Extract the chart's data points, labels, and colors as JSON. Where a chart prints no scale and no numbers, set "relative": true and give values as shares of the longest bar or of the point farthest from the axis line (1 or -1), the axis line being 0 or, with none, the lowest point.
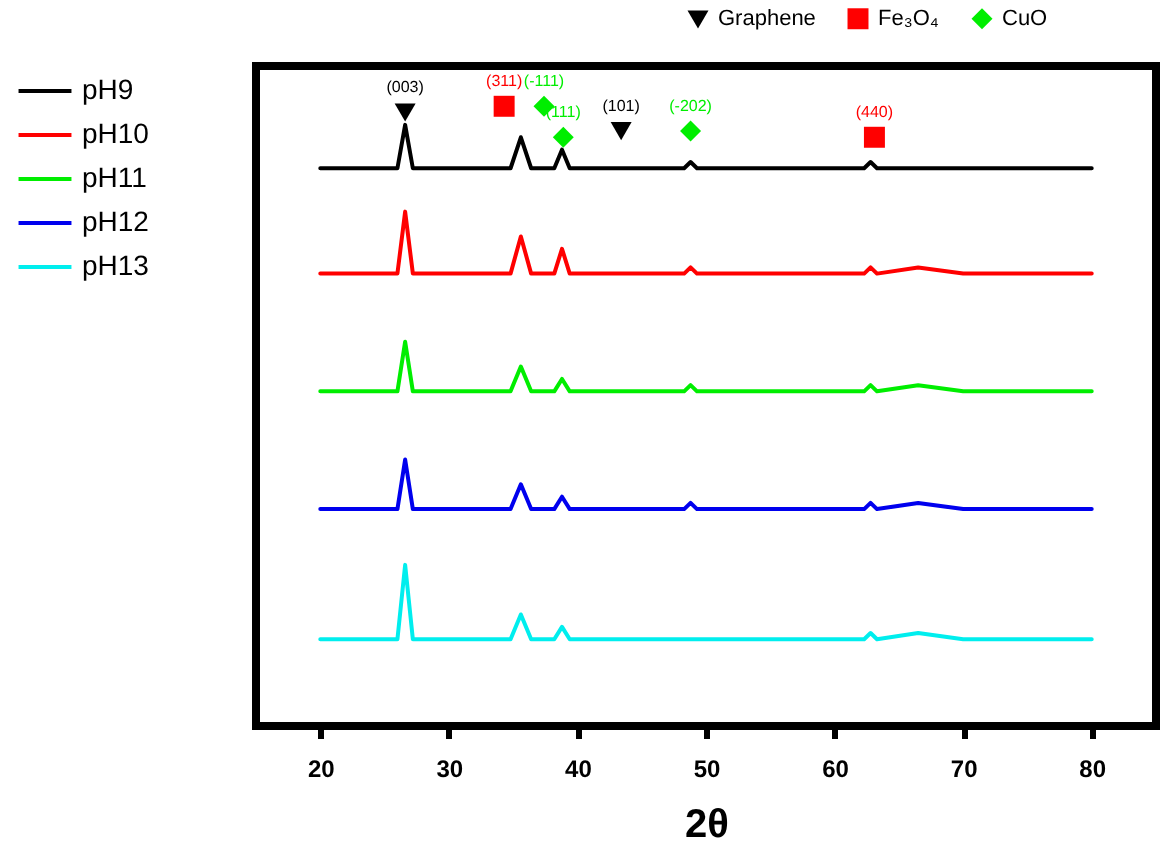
{
  "chart_data": {
    "type": "line",
    "relative": true,
    "xlabel": "2θ",
    "xlim": [
      15,
      85
    ],
    "xticks": [
      20,
      30,
      40,
      50,
      60,
      70,
      80
    ],
    "legend": "top left",
    "grid": false,
    "x": [
      20,
      24,
      26.0,
      26.6,
      27.2,
      30,
      33,
      34.8,
      35.6,
      36.4,
      38.2,
      38.8,
      39.4,
      43,
      48.3,
      48.8,
      49.3,
      55,
      62.3,
      62.8,
      63.3,
      66.5,
      70,
      75,
      80
    ],
    "series": [
      {
        "name": "pH9",
        "color": "#000000",
        "values": [
          0.9,
          0.9,
          0.9,
          0.97,
          0.9,
          0.9,
          0.9,
          0.9,
          0.95,
          0.9,
          0.9,
          0.93,
          0.9,
          0.9,
          0.9,
          0.91,
          0.9,
          0.9,
          0.9,
          0.91,
          0.9,
          0.9,
          0.9,
          0.9,
          0.9
        ]
      },
      {
        "name": "pH10",
        "color": "#ff0000",
        "values": [
          0.73,
          0.73,
          0.73,
          0.83,
          0.73,
          0.73,
          0.73,
          0.73,
          0.79,
          0.73,
          0.73,
          0.77,
          0.73,
          0.73,
          0.73,
          0.74,
          0.73,
          0.73,
          0.73,
          0.74,
          0.73,
          0.74,
          0.73,
          0.73,
          0.73
        ]
      },
      {
        "name": "pH11",
        "color": "#00ee00",
        "values": [
          0.54,
          0.54,
          0.54,
          0.62,
          0.54,
          0.54,
          0.54,
          0.54,
          0.58,
          0.54,
          0.54,
          0.56,
          0.54,
          0.54,
          0.54,
          0.55,
          0.54,
          0.54,
          0.54,
          0.55,
          0.54,
          0.55,
          0.54,
          0.54,
          0.54
        ]
      },
      {
        "name": "pH12",
        "color": "#0000ee",
        "values": [
          0.35,
          0.35,
          0.35,
          0.43,
          0.35,
          0.35,
          0.35,
          0.35,
          0.39,
          0.35,
          0.35,
          0.37,
          0.35,
          0.35,
          0.35,
          0.36,
          0.35,
          0.35,
          0.35,
          0.36,
          0.35,
          0.36,
          0.35,
          0.35,
          0.35
        ]
      },
      {
        "name": "pH13",
        "color": "#00eeee",
        "values": [
          0.14,
          0.14,
          0.14,
          0.26,
          0.14,
          0.14,
          0.14,
          0.14,
          0.18,
          0.14,
          0.14,
          0.16,
          0.14,
          0.14,
          0.14,
          0.14,
          0.14,
          0.14,
          0.14,
          0.15,
          0.14,
          0.15,
          0.14,
          0.14,
          0.14
        ]
      },
      {
        "name": "Graphene",
        "type": "scatter",
        "marker": "triangle",
        "color": "#000000",
        "x": [
          26.6,
          43.4
        ],
        "values": [
          0.99,
          0.96
        ]
      },
      {
        "name": "Fe₃O₄",
        "type": "scatter",
        "marker": "square",
        "color": "#ff0000",
        "x": [
          34.3,
          63.1
        ],
        "values": [
          1.0,
          0.95
        ]
      },
      {
        "name": "CuO",
        "type": "scatter",
        "marker": "diamond",
        "color": "#00ee00",
        "x": [
          37.4,
          38.9,
          48.8
        ],
        "values": [
          1.0,
          0.95,
          0.96
        ]
      }
    ],
    "annotations": [
      {
        "text": "(003)",
        "x": 26.6,
        "y": 0.99
      },
      {
        "text": "(101)",
        "x": 43.4,
        "y": 0.96
      },
      {
        "text": "(311)",
        "x": 34.3,
        "y": 1.0
      },
      {
        "text": "(440)",
        "x": 63.1,
        "y": 0.95
      },
      {
        "text": "(-111)",
        "x": 37.4,
        "y": 1.0
      },
      {
        "text": "(111)",
        "x": 38.9,
        "y": 0.95
      },
      {
        "text": "(-202)",
        "x": 48.8,
        "y": 0.96
      }
    ]
  }
}
